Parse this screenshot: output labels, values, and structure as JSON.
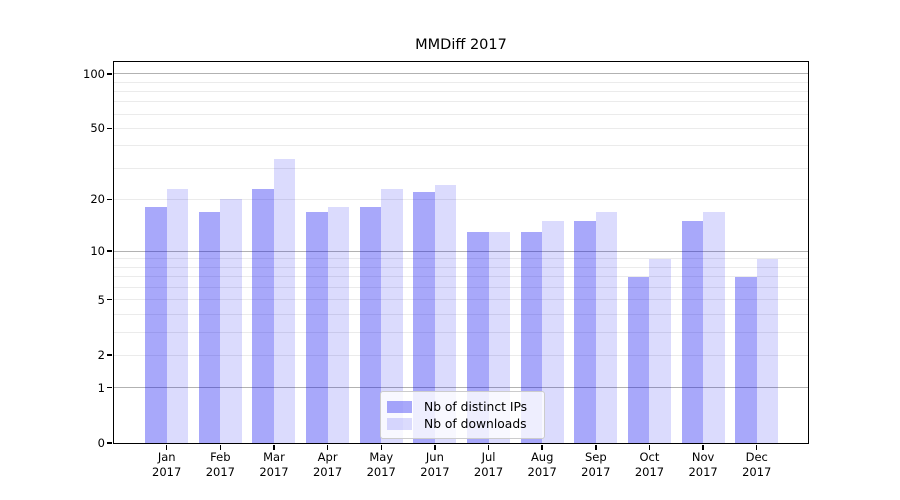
{
  "chart_data": {
    "type": "bar",
    "title": "MMDiff 2017",
    "year": "2017",
    "categories": [
      "Jan",
      "Feb",
      "Mar",
      "Apr",
      "May",
      "Jun",
      "Jul",
      "Aug",
      "Sep",
      "Oct",
      "Nov",
      "Dec"
    ],
    "series": [
      {
        "name": "Nb of distinct IPs",
        "color": "rgba(0,0,240,0.34)",
        "values": [
          18,
          17,
          23,
          17,
          18,
          22,
          13,
          13,
          15,
          7,
          15,
          7
        ]
      },
      {
        "name": "Nb of downloads",
        "color": "rgba(0,0,240,0.14)",
        "values": [
          23,
          20,
          34,
          18,
          23,
          24,
          13,
          15,
          17,
          9,
          17,
          9
        ]
      }
    ],
    "xlabel": "",
    "ylabel": "",
    "yscale": "log1p",
    "ylim": [
      0,
      116
    ],
    "y_tick_values": [
      100,
      50,
      20,
      10,
      5,
      2,
      1,
      0
    ],
    "y_tick_labels": [
      "100",
      "50",
      "20",
      "10",
      "5",
      "2",
      "1",
      "0"
    ],
    "minor_grid_values": [
      2,
      3,
      4,
      5,
      6,
      7,
      8,
      9,
      20,
      30,
      40,
      50,
      60,
      70,
      80,
      90
    ],
    "major_grid_values": [
      1,
      10,
      100
    ],
    "grid": true,
    "legend_position": "lower center",
    "colors": {
      "axis": "#000000",
      "grid_minor": "#ebebeb",
      "grid_major": "#b2b2b2",
      "background": "#ffffff"
    }
  }
}
